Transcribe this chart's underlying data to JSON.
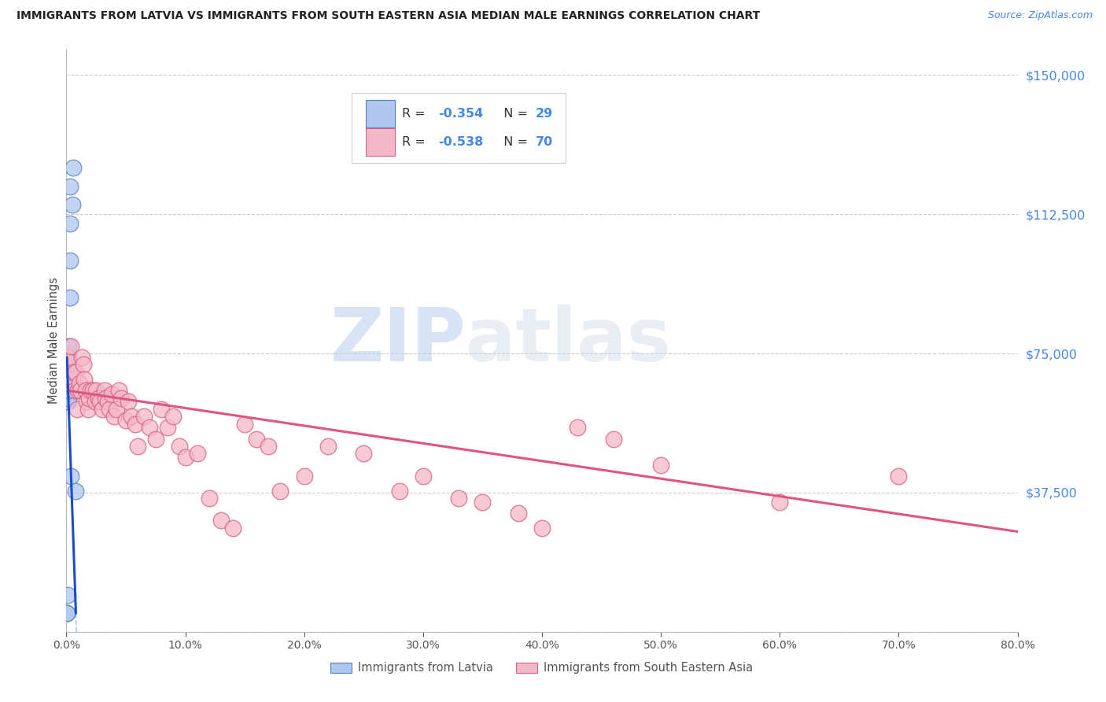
{
  "title": "IMMIGRANTS FROM LATVIA VS IMMIGRANTS FROM SOUTH EASTERN ASIA MEDIAN MALE EARNINGS CORRELATION CHART",
  "source": "Source: ZipAtlas.com",
  "ylabel": "Median Male Earnings",
  "yticks": [
    0,
    37500,
    75000,
    112500,
    150000
  ],
  "ytick_labels": [
    "",
    "$37,500",
    "$75,000",
    "$112,500",
    "$150,000"
  ],
  "xlim": [
    0,
    0.8
  ],
  "ylim": [
    0,
    157000
  ],
  "xticks": [
    0.0,
    0.1,
    0.2,
    0.3,
    0.4,
    0.5,
    0.6,
    0.7,
    0.8
  ],
  "series": [
    {
      "name": "Immigrants from Latvia",
      "color": "#aec6f0",
      "edge_color": "#5580c0",
      "R": -0.354,
      "N": 29,
      "x": [
        0.0005,
        0.0007,
        0.0008,
        0.001,
        0.001,
        0.001,
        0.001,
        0.0013,
        0.0013,
        0.0015,
        0.0015,
        0.0015,
        0.0015,
        0.0017,
        0.0017,
        0.002,
        0.002,
        0.002,
        0.002,
        0.002,
        0.002,
        0.003,
        0.003,
        0.003,
        0.003,
        0.004,
        0.005,
        0.006,
        0.008
      ],
      "y": [
        5000,
        5000,
        10000,
        62000,
        65000,
        66000,
        67000,
        65000,
        68000,
        62000,
        63000,
        67000,
        70000,
        70000,
        72000,
        65000,
        68000,
        70000,
        72000,
        75000,
        77000,
        90000,
        100000,
        110000,
        120000,
        42000,
        115000,
        125000,
        38000
      ]
    },
    {
      "name": "Immigrants from South Eastern Asia",
      "color": "#f5b8c8",
      "edge_color": "#d86080",
      "R": -0.538,
      "N": 70,
      "x": [
        0.001,
        0.002,
        0.003,
        0.004,
        0.005,
        0.006,
        0.007,
        0.008,
        0.009,
        0.01,
        0.011,
        0.012,
        0.013,
        0.014,
        0.015,
        0.016,
        0.017,
        0.018,
        0.019,
        0.02,
        0.022,
        0.024,
        0.025,
        0.027,
        0.028,
        0.03,
        0.032,
        0.033,
        0.035,
        0.036,
        0.038,
        0.04,
        0.042,
        0.044,
        0.046,
        0.05,
        0.052,
        0.055,
        0.058,
        0.06,
        0.065,
        0.07,
        0.075,
        0.08,
        0.085,
        0.09,
        0.095,
        0.1,
        0.11,
        0.12,
        0.13,
        0.14,
        0.15,
        0.16,
        0.17,
        0.18,
        0.2,
        0.22,
        0.25,
        0.28,
        0.3,
        0.33,
        0.35,
        0.38,
        0.4,
        0.43,
        0.46,
        0.5,
        0.6,
        0.7
      ],
      "y": [
        74000,
        73000,
        68000,
        77000,
        68000,
        70000,
        65000,
        70000,
        60000,
        65000,
        67000,
        65000,
        74000,
        72000,
        68000,
        65000,
        62000,
        60000,
        63000,
        65000,
        65000,
        62000,
        65000,
        63000,
        62000,
        60000,
        65000,
        63000,
        62000,
        60000,
        64000,
        58000,
        60000,
        65000,
        63000,
        57000,
        62000,
        58000,
        56000,
        50000,
        58000,
        55000,
        52000,
        60000,
        55000,
        58000,
        50000,
        47000,
        48000,
        36000,
        30000,
        28000,
        56000,
        52000,
        50000,
        38000,
        42000,
        50000,
        48000,
        38000,
        42000,
        36000,
        35000,
        32000,
        28000,
        55000,
        52000,
        45000,
        35000,
        42000
      ]
    }
  ],
  "blue_line": {
    "color": "#1a4dcc",
    "x0": 0.0005,
    "x1": 0.008,
    "y0": 74000,
    "y1": 5000
  },
  "pink_line": {
    "color": "#e05580",
    "x0": 0.001,
    "x1": 0.8,
    "y0": 65000,
    "y1": 27000
  },
  "watermark_zip": "ZIP",
  "watermark_atlas": "atlas",
  "background_color": "#ffffff",
  "grid_color": "#cccccc"
}
